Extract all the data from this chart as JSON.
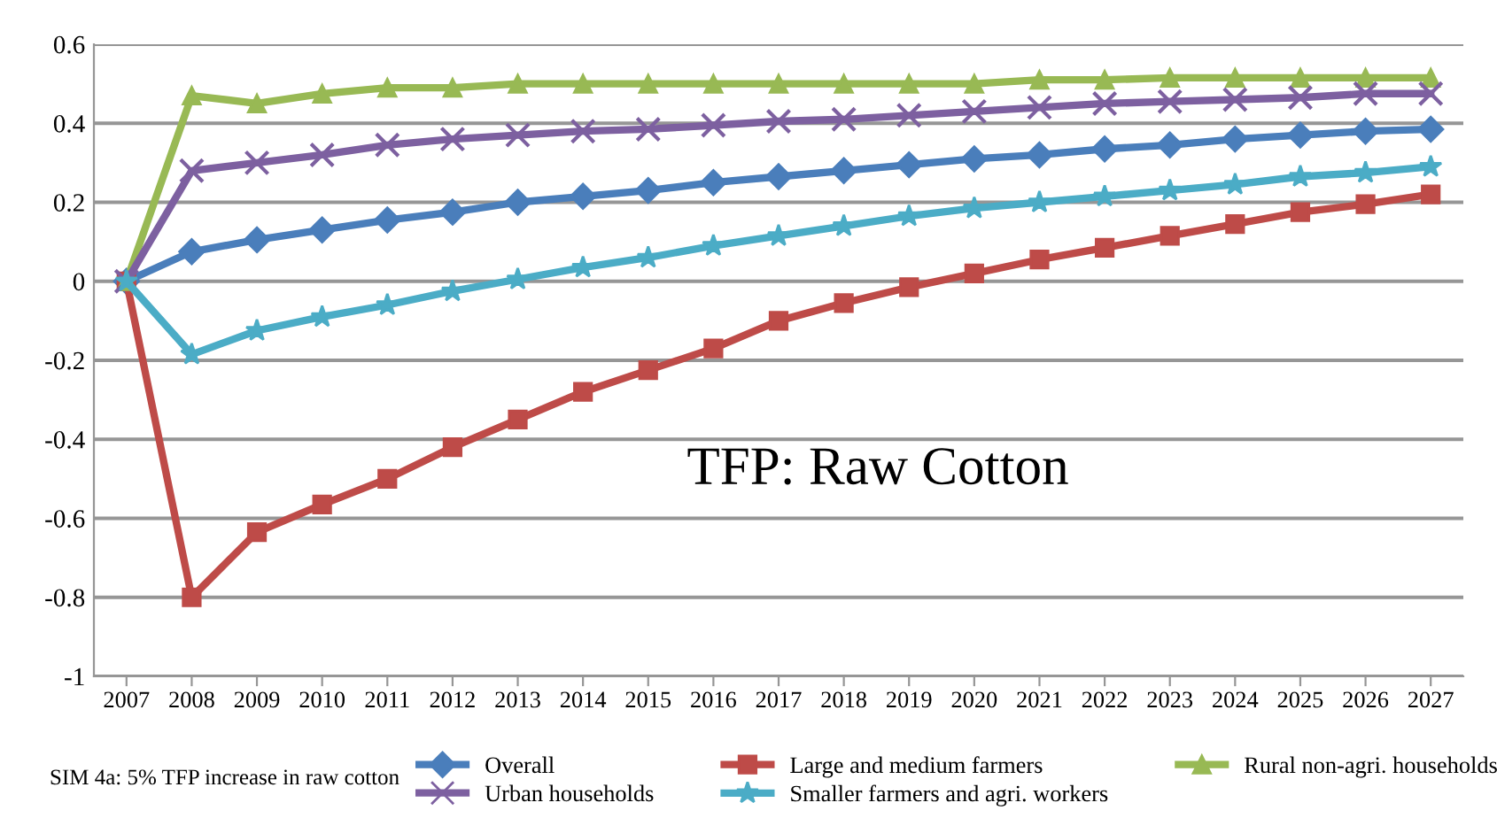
{
  "chart_data": {
    "type": "line",
    "title": "TFP: Raw Cotton",
    "categories": [
      "2007",
      "2008",
      "2009",
      "2010",
      "2011",
      "2012",
      "2013",
      "2014",
      "2015",
      "2016",
      "2017",
      "2018",
      "2019",
      "2020",
      "2021",
      "2022",
      "2023",
      "2024",
      "2025",
      "2026",
      "2027"
    ],
    "series": [
      {
        "name": "Overall",
        "color": "#4a7ebb",
        "marker": "diamond",
        "values": [
          0,
          0.075,
          0.105,
          0.13,
          0.155,
          0.175,
          0.2,
          0.215,
          0.23,
          0.25,
          0.265,
          0.28,
          0.295,
          0.31,
          0.32,
          0.335,
          0.345,
          0.36,
          0.37,
          0.38,
          0.385
        ]
      },
      {
        "name": "Large and medium farmers",
        "color": "#be4b48",
        "marker": "square",
        "values": [
          0,
          -0.8,
          -0.635,
          -0.565,
          -0.5,
          -0.42,
          -0.35,
          -0.28,
          -0.225,
          -0.17,
          -0.1,
          -0.055,
          -0.015,
          0.02,
          0.055,
          0.085,
          0.115,
          0.145,
          0.175,
          0.195,
          0.22
        ]
      },
      {
        "name": "Rural non-agri. households",
        "color": "#98b954",
        "marker": "triangle",
        "values": [
          0,
          0.47,
          0.45,
          0.475,
          0.49,
          0.49,
          0.5,
          0.5,
          0.5,
          0.5,
          0.5,
          0.5,
          0.5,
          0.5,
          0.51,
          0.51,
          0.515,
          0.515,
          0.515,
          0.515,
          0.515
        ]
      },
      {
        "name": "Urban households",
        "color": "#7d60a0",
        "marker": "cross",
        "values": [
          0,
          0.28,
          0.3,
          0.32,
          0.345,
          0.36,
          0.37,
          0.38,
          0.385,
          0.395,
          0.405,
          0.41,
          0.42,
          0.43,
          0.44,
          0.45,
          0.455,
          0.46,
          0.465,
          0.475,
          0.475
        ]
      },
      {
        "name": "Smaller farmers and agri. workers",
        "color": "#4bacc6",
        "marker": "star",
        "values": [
          0,
          -0.185,
          -0.125,
          -0.09,
          -0.06,
          -0.025,
          0.005,
          0.035,
          0.06,
          0.09,
          0.115,
          0.14,
          0.165,
          0.185,
          0.2,
          0.215,
          0.23,
          0.245,
          0.265,
          0.275,
          0.29
        ]
      }
    ],
    "ylim": [
      -1,
      0.6
    ],
    "yticks": [
      -1,
      -0.8,
      -0.6,
      -0.4,
      -0.2,
      0,
      0.2,
      0.4,
      0.6
    ],
    "grid": "y",
    "legend": "bottom",
    "line_style": "solid",
    "annotations": [
      "SIM 4a: 5% TFP increase in raw cotton"
    ]
  }
}
